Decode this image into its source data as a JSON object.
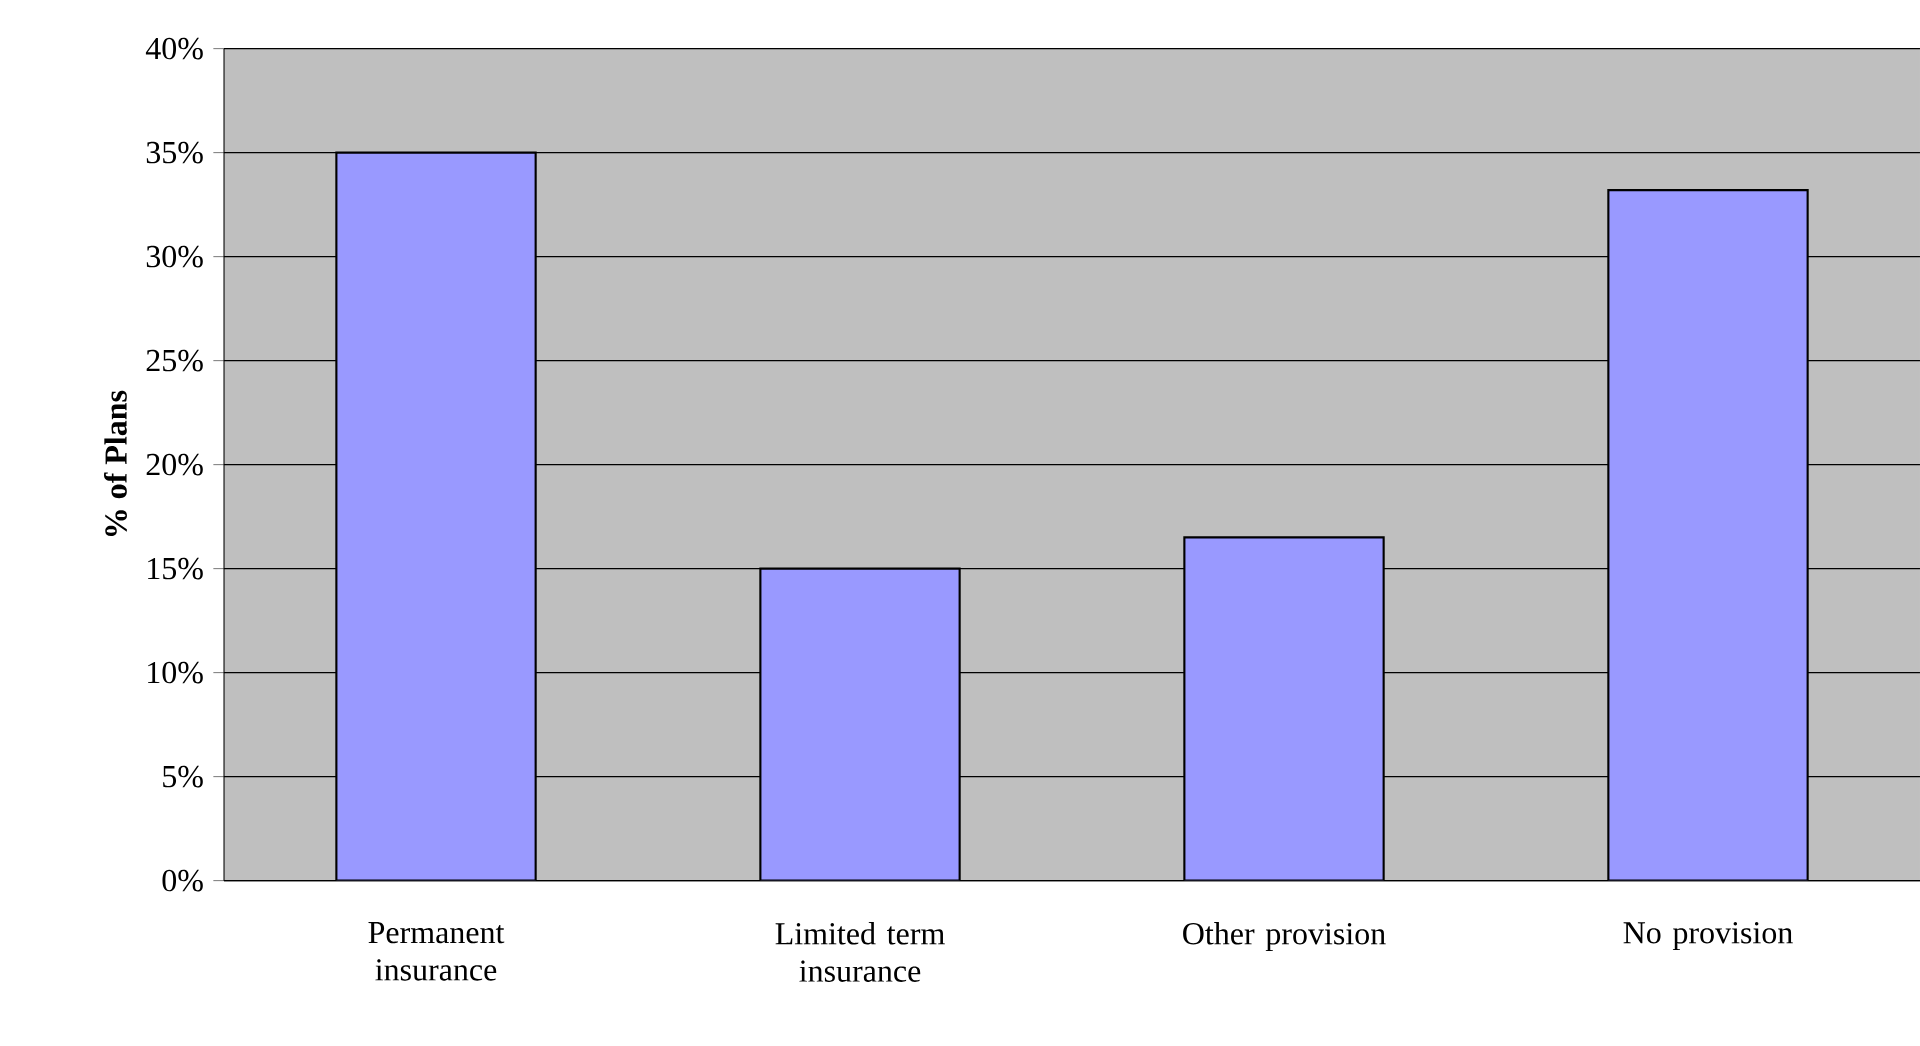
{
  "chart_data": {
    "type": "bar",
    "ylabel": "% of Plans",
    "categories": [
      "Permanent insurance",
      "Limited term insurance",
      "Other provision",
      "No provision"
    ],
    "values": [
      35,
      15,
      16.5,
      33.2
    ],
    "color": "#9999ff",
    "ylim": [
      0,
      40
    ],
    "yticks": [
      {
        "value": 0,
        "label": "0%"
      },
      {
        "value": 5,
        "label": "5%"
      },
      {
        "value": 10,
        "label": "10%"
      },
      {
        "value": 15,
        "label": "15%"
      },
      {
        "value": 20,
        "label": "20%"
      },
      {
        "value": 25,
        "label": "25%"
      },
      {
        "value": 30,
        "label": "30%"
      },
      {
        "value": 35,
        "label": "35%"
      },
      {
        "value": 40,
        "label": "40%"
      }
    ],
    "grid": "y"
  }
}
